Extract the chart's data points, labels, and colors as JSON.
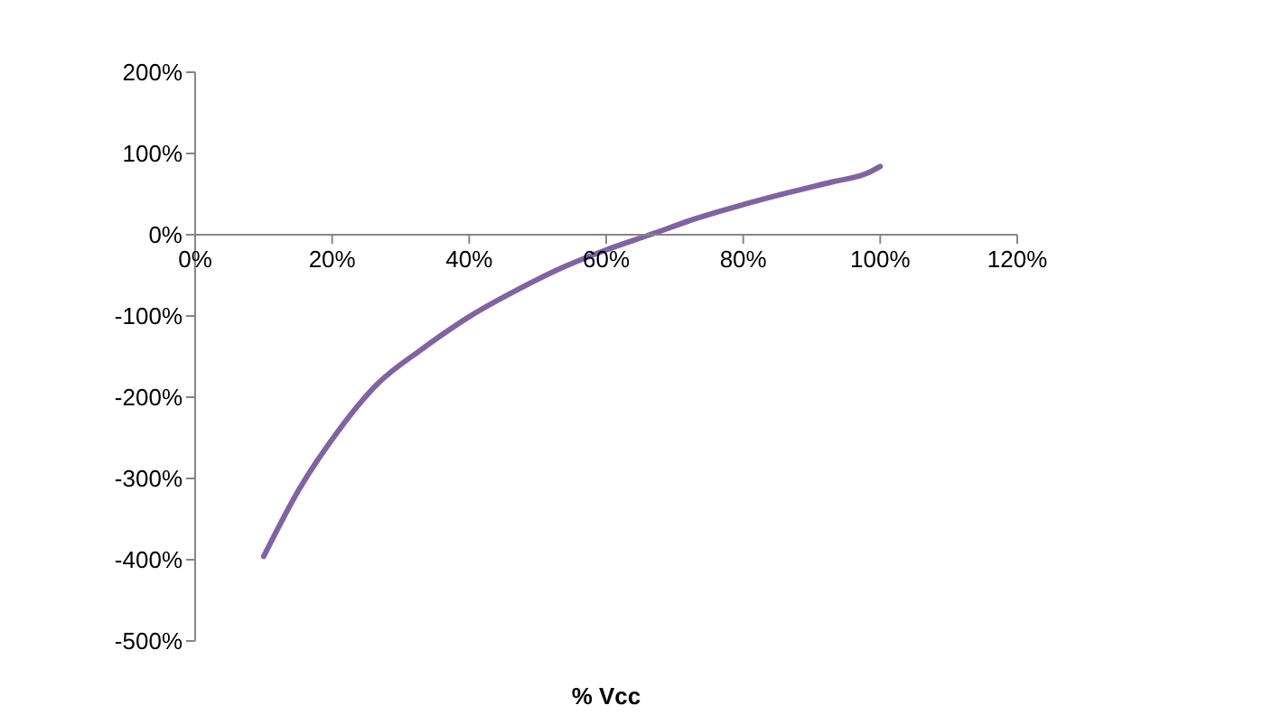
{
  "chart_data": {
    "type": "line",
    "xlabel": "% Vcc",
    "x": [
      10,
      15.2,
      20.5,
      26.7,
      32.9,
      40,
      47,
      54,
      60.2,
      66.4,
      73.5,
      80,
      86.7,
      93,
      98.2,
      100
    ],
    "series": [
      {
        "color": "#8064a2",
        "values": [
          -396,
          -313,
          -246,
          -183,
          -142,
          -101,
          -68,
          -39,
          -18,
          0,
          21,
          37,
          52,
          65,
          76,
          84
        ]
      }
    ],
    "xlim": [
      0,
      120
    ],
    "xticks": [
      {
        "value": 0,
        "label": "0%"
      },
      {
        "value": 20,
        "label": "20%"
      },
      {
        "value": 40,
        "label": "40%"
      },
      {
        "value": 60,
        "label": "60%"
      },
      {
        "value": 80,
        "label": "80%"
      },
      {
        "value": 100,
        "label": "100%"
      },
      {
        "value": 120,
        "label": "120%"
      }
    ],
    "ylim": [
      -500,
      200
    ],
    "yticks": [
      {
        "value": -500,
        "label": "-500%"
      },
      {
        "value": -400,
        "label": "-400%"
      },
      {
        "value": -300,
        "label": "-300%"
      },
      {
        "value": -200,
        "label": "-200%"
      },
      {
        "value": -100,
        "label": "-100%"
      },
      {
        "value": 0,
        "label": "0%"
      },
      {
        "value": 100,
        "label": "100%"
      },
      {
        "value": 200,
        "label": "200%"
      }
    ],
    "grid": false,
    "legend": false,
    "marker": "none",
    "line_style": "solid"
  }
}
